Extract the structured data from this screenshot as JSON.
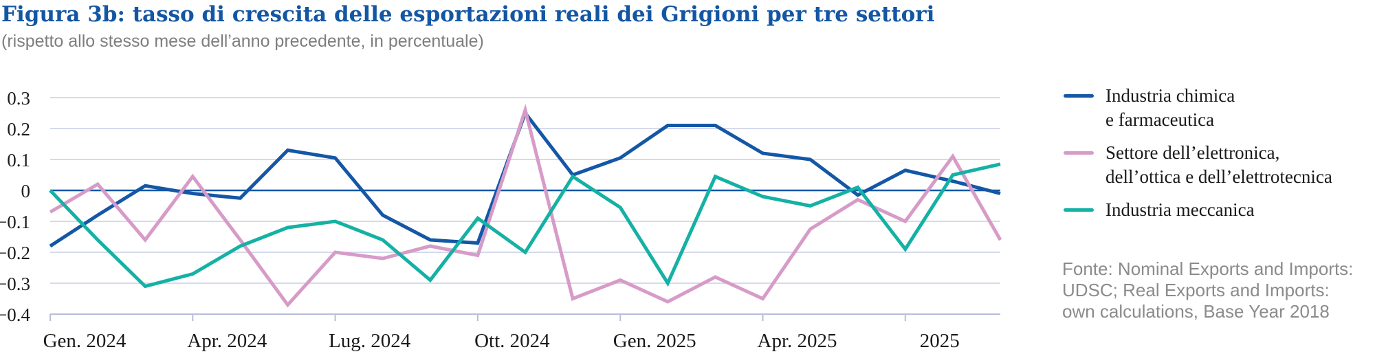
{
  "chart_data": {
    "type": "line",
    "title": "Figura 3b: tasso di crescita delle esportazioni reali dei Grigioni per tre settori",
    "subtitle": "(rispetto allo stesso mese dell’anno precedente, in percentuale)",
    "x_unit": "month",
    "n_points": 21,
    "x_range_note": "monthly from Gen. 2024 to Set. 2025",
    "x_ticks": [
      {
        "month_index": 0,
        "label": "Gen. 2024"
      },
      {
        "month_index": 3,
        "label": "Apr. 2024"
      },
      {
        "month_index": 6,
        "label": "Lug. 2024"
      },
      {
        "month_index": 9,
        "label": "Ott. 2024"
      },
      {
        "month_index": 12,
        "label": "Gen. 2025"
      },
      {
        "month_index": 15,
        "label": "Apr. 2025"
      },
      {
        "month_index": 18,
        "label": "2025"
      }
    ],
    "y_ticks": [
      {
        "value": 0.3,
        "label": "0.3"
      },
      {
        "value": 0.2,
        "label": "0.2"
      },
      {
        "value": 0.1,
        "label": "0.1"
      },
      {
        "value": 0,
        "label": "0"
      },
      {
        "value": -0.1,
        "label": "−0.1"
      },
      {
        "value": -0.2,
        "label": "−0.2"
      },
      {
        "value": -0.3,
        "label": "−0.3"
      },
      {
        "value": -0.4,
        "label": "−0.4"
      }
    ],
    "ylim": [
      -0.4,
      0.3
    ],
    "grid": "horizontal",
    "zero_line": true,
    "legend_position": "right",
    "series": [
      {
        "name": "Industria chimica e farmaceutica",
        "color": "#1457a6",
        "values": [
          -0.18,
          -0.08,
          0.015,
          -0.01,
          -0.025,
          0.13,
          0.105,
          -0.08,
          -0.16,
          -0.17,
          0.25,
          0.05,
          0.105,
          0.21,
          0.21,
          0.12,
          0.1,
          -0.015,
          0.065,
          0.03,
          -0.01
        ]
      },
      {
        "name": "Settore dell’elettronica, dell’ottica e dell’elettrotecnica",
        "color": "#d79bc8",
        "values": [
          -0.07,
          0.02,
          -0.16,
          0.045,
          -0.16,
          -0.37,
          -0.2,
          -0.22,
          -0.18,
          -0.21,
          0.26,
          -0.35,
          -0.29,
          -0.36,
          -0.28,
          -0.35,
          -0.125,
          -0.03,
          -0.1,
          0.11,
          -0.16
        ]
      },
      {
        "name": "Industria meccanica",
        "color": "#14b1a4",
        "values": [
          0.0,
          -0.16,
          -0.31,
          -0.27,
          -0.18,
          -0.12,
          -0.1,
          -0.16,
          -0.29,
          -0.09,
          -0.2,
          0.045,
          -0.055,
          -0.3,
          0.045,
          -0.02,
          -0.05,
          0.01,
          -0.19,
          0.05,
          0.085
        ]
      }
    ]
  },
  "legend": {
    "items": [
      {
        "series_index": 0,
        "label_lines": [
          "Industria chimica",
          "e farmaceutica"
        ]
      },
      {
        "series_index": 1,
        "label_lines": [
          "Settore dell’elettronica,",
          "dell’ottica e dell’elettrotecnica"
        ]
      },
      {
        "series_index": 2,
        "label_lines": [
          "Industria meccanica"
        ]
      }
    ]
  },
  "source": {
    "lines": [
      "Fonte: Nominal Exports and Imports:",
      "UDSC; Real Exports and Imports:",
      "own calculations, Base Year 2018"
    ]
  },
  "colors": {
    "grid": "#c9cde6",
    "axis": "#b6bedb",
    "title": "#1356a3",
    "subtitle": "#7e7e7e",
    "source_text": "#8b8b8b",
    "label_text": "#1a1a1a"
  }
}
